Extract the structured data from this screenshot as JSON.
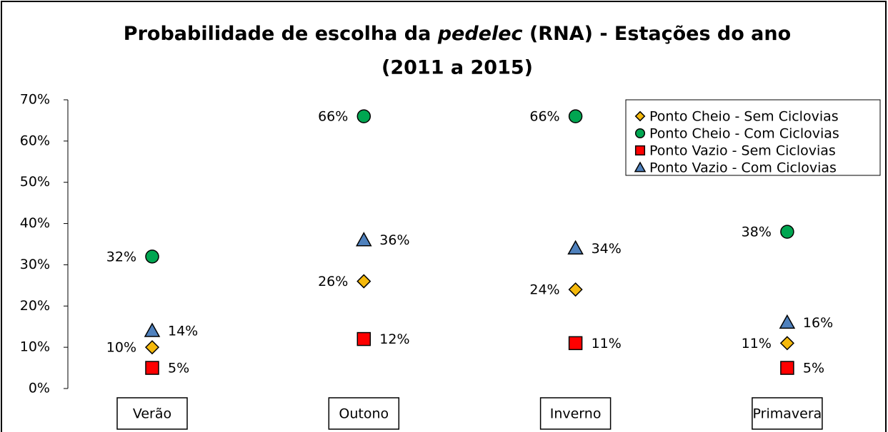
{
  "chart_data": {
    "type": "scatter",
    "title": [
      "Probabilidade de escolha da ",
      "pedelec",
      " (RNA) - Estações do ano",
      "(2011 a 2015)"
    ],
    "categories": [
      "Verão",
      "Outono",
      "Inverno",
      "Primavera"
    ],
    "ylim": [
      0,
      70
    ],
    "yticks": [
      {
        "value": 0,
        "label": "0%"
      },
      {
        "value": 10,
        "label": "10%"
      },
      {
        "value": 20,
        "label": "20%"
      },
      {
        "value": 30,
        "label": "30%"
      },
      {
        "value": 40,
        "label": "40%"
      },
      {
        "value": 50,
        "label": "50%"
      },
      {
        "value": 60,
        "label": "60%"
      },
      {
        "value": 70,
        "label": "70%"
      }
    ],
    "legend": "top-right",
    "series": [
      {
        "name": "Ponto Cheio - Sem Ciclovias",
        "color": "#f5b90c",
        "marker": "diamond",
        "label_side": "left",
        "values": [
          10,
          26,
          24,
          11
        ],
        "value_labels": [
          "10%",
          "26%",
          "24%",
          "11%"
        ]
      },
      {
        "name": "Ponto Cheio - Com Ciclovias",
        "color": "#00a651",
        "marker": "circle",
        "label_side": "left",
        "values": [
          32,
          66,
          66,
          38
        ],
        "value_labels": [
          "32%",
          "66%",
          "66%",
          "38%"
        ]
      },
      {
        "name": "Ponto Vazio - Sem Ciclovias",
        "color": "#ff0000",
        "marker": "square",
        "label_side": "right",
        "values": [
          5,
          12,
          11,
          5
        ],
        "value_labels": [
          "5%",
          "12%",
          "11%",
          "5%"
        ]
      },
      {
        "name": "Ponto Vazio - Com Ciclovias",
        "color": "#4f81bd",
        "marker": "triangle",
        "label_side": "right",
        "values": [
          14,
          36,
          34,
          16
        ],
        "value_labels": [
          "14%",
          "36%",
          "34%",
          "16%"
        ]
      }
    ]
  }
}
